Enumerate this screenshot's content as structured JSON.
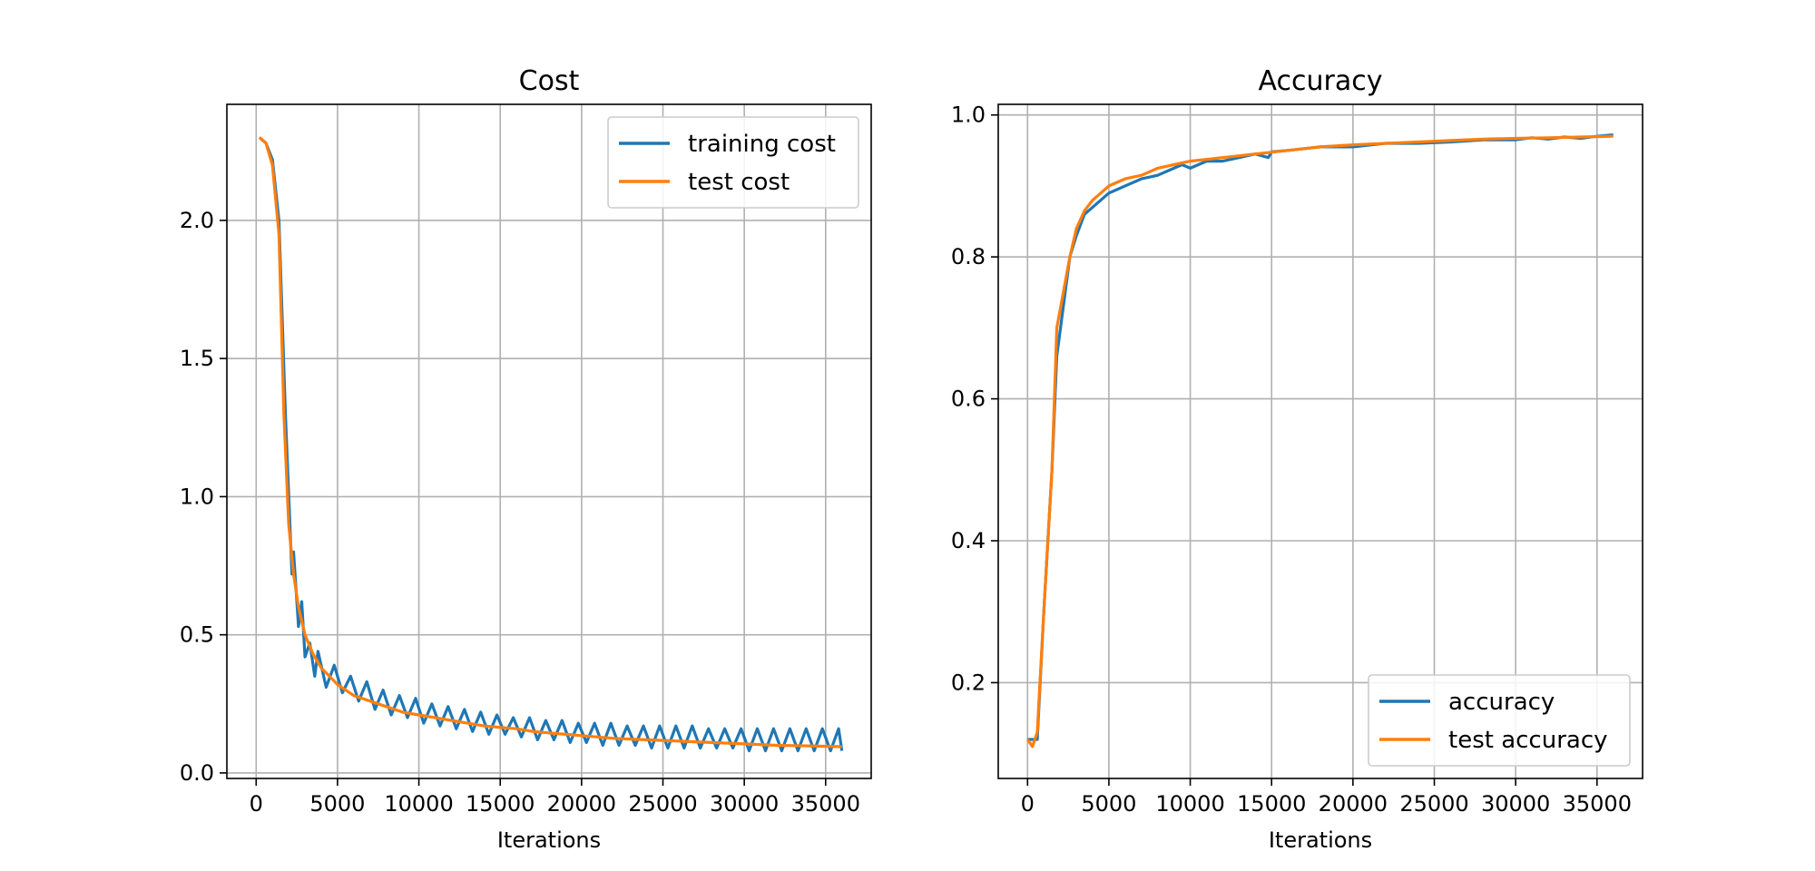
{
  "chart_data": [
    {
      "type": "line",
      "title": "Cost",
      "xlabel": "Iterations",
      "ylabel": "",
      "xlim": [
        -1800,
        37800
      ],
      "ylim": [
        -0.02,
        2.42
      ],
      "xticks": [
        0,
        5000,
        10000,
        15000,
        20000,
        25000,
        30000,
        35000
      ],
      "xtick_labels": [
        "0",
        "5000",
        "10000",
        "15000",
        "20000",
        "25000",
        "30000",
        "35000"
      ],
      "yticks": [
        0.0,
        0.5,
        1.0,
        1.5,
        2.0
      ],
      "ytick_labels": [
        "0.0",
        "0.5",
        "1.0",
        "1.5",
        "2.0"
      ],
      "grid": true,
      "legend": "upper right",
      "series": [
        {
          "name": "training cost",
          "color": "#1f77b4",
          "x": [
            200,
            600,
            1000,
            1400,
            1800,
            2200,
            2300,
            2600,
            2800,
            3000,
            3300,
            3600,
            3800,
            4300,
            4800,
            5300,
            5800,
            6300,
            6800,
            7300,
            7800,
            8300,
            8800,
            9300,
            9800,
            10300,
            10800,
            11300,
            11800,
            12300,
            12800,
            13300,
            13800,
            14300,
            14800,
            15300,
            15800,
            16300,
            16800,
            17300,
            17800,
            18300,
            18800,
            19300,
            19800,
            20300,
            20800,
            21300,
            21800,
            22300,
            22800,
            23300,
            23800,
            24300,
            24800,
            25300,
            25800,
            26300,
            26800,
            27300,
            27800,
            28300,
            28800,
            29300,
            29800,
            30300,
            30800,
            31300,
            31800,
            32300,
            32800,
            33300,
            33800,
            34300,
            34800,
            35300,
            35800,
            36000
          ],
          "y": [
            2.3,
            2.28,
            2.22,
            2.0,
            1.3,
            0.72,
            0.8,
            0.53,
            0.62,
            0.42,
            0.47,
            0.35,
            0.44,
            0.31,
            0.39,
            0.29,
            0.35,
            0.26,
            0.33,
            0.23,
            0.3,
            0.21,
            0.28,
            0.2,
            0.27,
            0.18,
            0.25,
            0.17,
            0.24,
            0.16,
            0.23,
            0.15,
            0.22,
            0.14,
            0.21,
            0.14,
            0.2,
            0.13,
            0.2,
            0.12,
            0.19,
            0.12,
            0.19,
            0.11,
            0.18,
            0.11,
            0.18,
            0.1,
            0.18,
            0.1,
            0.17,
            0.1,
            0.17,
            0.09,
            0.17,
            0.09,
            0.17,
            0.09,
            0.17,
            0.09,
            0.16,
            0.09,
            0.16,
            0.09,
            0.16,
            0.08,
            0.16,
            0.08,
            0.16,
            0.08,
            0.16,
            0.08,
            0.16,
            0.08,
            0.16,
            0.08,
            0.16,
            0.08
          ]
        },
        {
          "name": "test cost",
          "color": "#ff7f0e",
          "x": [
            200,
            600,
            1000,
            1400,
            1700,
            2000,
            2300,
            2600,
            3000,
            3500,
            4000,
            4500,
            5000,
            6000,
            7000,
            8000,
            9000,
            10000,
            11000,
            12000,
            13000,
            14000,
            15000,
            16000,
            17000,
            18000,
            20000,
            22000,
            24000,
            26000,
            28000,
            30000,
            32000,
            34000,
            36000
          ],
          "y": [
            2.3,
            2.28,
            2.2,
            1.95,
            1.3,
            0.9,
            0.72,
            0.6,
            0.5,
            0.43,
            0.38,
            0.35,
            0.32,
            0.28,
            0.26,
            0.24,
            0.22,
            0.21,
            0.2,
            0.19,
            0.18,
            0.17,
            0.165,
            0.16,
            0.15,
            0.145,
            0.135,
            0.125,
            0.12,
            0.115,
            0.11,
            0.105,
            0.1,
            0.098,
            0.095
          ]
        }
      ]
    },
    {
      "type": "line",
      "title": "Accuracy",
      "xlabel": "Iterations",
      "ylabel": "",
      "xlim": [
        -1800,
        37800
      ],
      "ylim": [
        0.065,
        1.015
      ],
      "xticks": [
        0,
        5000,
        10000,
        15000,
        20000,
        25000,
        30000,
        35000
      ],
      "xtick_labels": [
        "0",
        "5000",
        "10000",
        "15000",
        "20000",
        "25000",
        "30000",
        "35000"
      ],
      "yticks": [
        0.2,
        0.4,
        0.6,
        0.8,
        1.0
      ],
      "ytick_labels": [
        "0.2",
        "0.4",
        "0.6",
        "0.8",
        "1.0"
      ],
      "grid": true,
      "legend": "lower right",
      "series": [
        {
          "name": "accuracy",
          "color": "#1f77b4",
          "x": [
            0,
            300,
            600,
            1000,
            1500,
            1800,
            2200,
            2600,
            3000,
            3500,
            4000,
            4500,
            5000,
            5500,
            6000,
            7000,
            8000,
            9000,
            9500,
            10000,
            11000,
            12000,
            13000,
            14000,
            14800,
            15000,
            16000,
            18000,
            20000,
            22000,
            24000,
            26000,
            28000,
            30000,
            31000,
            32000,
            33000,
            34000,
            35000,
            36000
          ],
          "y": [
            0.12,
            0.12,
            0.12,
            0.3,
            0.5,
            0.66,
            0.73,
            0.8,
            0.83,
            0.86,
            0.87,
            0.88,
            0.89,
            0.895,
            0.9,
            0.91,
            0.915,
            0.925,
            0.93,
            0.925,
            0.935,
            0.935,
            0.94,
            0.945,
            0.94,
            0.948,
            0.95,
            0.955,
            0.955,
            0.96,
            0.96,
            0.962,
            0.965,
            0.965,
            0.968,
            0.966,
            0.969,
            0.967,
            0.97,
            0.972
          ]
        },
        {
          "name": "test accuracy",
          "color": "#ff7f0e",
          "x": [
            0,
            300,
            600,
            1000,
            1500,
            1800,
            2200,
            2600,
            3000,
            3500,
            4000,
            4500,
            5000,
            6000,
            7000,
            8000,
            9000,
            10000,
            12000,
            14000,
            16000,
            18000,
            20000,
            22000,
            24000,
            26000,
            28000,
            30000,
            32000,
            34000,
            36000
          ],
          "y": [
            0.12,
            0.11,
            0.13,
            0.3,
            0.5,
            0.7,
            0.75,
            0.8,
            0.84,
            0.865,
            0.88,
            0.89,
            0.9,
            0.91,
            0.915,
            0.925,
            0.93,
            0.935,
            0.94,
            0.945,
            0.95,
            0.955,
            0.958,
            0.96,
            0.962,
            0.964,
            0.966,
            0.967,
            0.968,
            0.969,
            0.97
          ]
        }
      ]
    }
  ]
}
